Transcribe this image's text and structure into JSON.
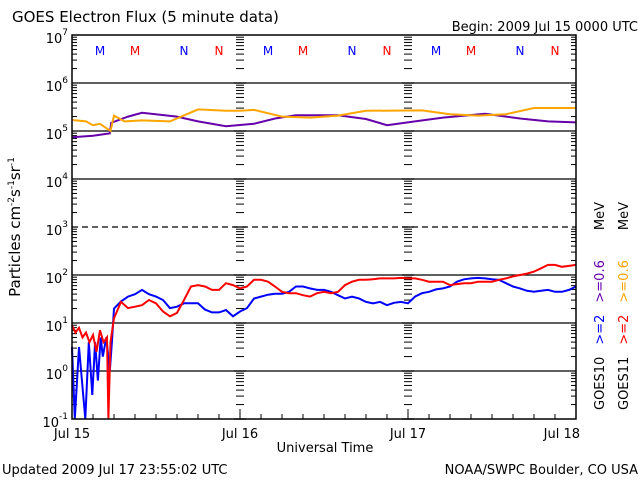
{
  "title": "GOES Electron Flux (5 minute data)",
  "begin": "Begin: 2009 Jul 15 0000 UTC",
  "footer_left": "Updated 2009 Jul 17 23:55:02 UTC",
  "footer_right": "NOAA/SWPC Boulder, CO USA",
  "chart_data": {
    "type": "line",
    "title": "GOES Electron Flux (5 minute data)",
    "xlabel": "Universal Time",
    "ylabel_parts": [
      "Particles cm",
      "-2",
      "s",
      "-1",
      "sr",
      "-1"
    ],
    "x_unit": "hours since 2009 Jul 15 0000 UTC",
    "xlim": [
      0,
      72
    ],
    "x_ticks": [
      {
        "h": 0,
        "label": "Jul 15"
      },
      {
        "h": 24,
        "label": "Jul 16"
      },
      {
        "h": 48,
        "label": "Jul 17"
      },
      {
        "h": 72,
        "label": "Jul 18"
      }
    ],
    "y_scale": "log",
    "ylim_log10": [
      -1,
      7
    ],
    "y_ticks": [
      {
        "base": "10",
        "exp": "7"
      },
      {
        "base": "10",
        "exp": "6"
      },
      {
        "base": "10",
        "exp": "5"
      },
      {
        "base": "10",
        "exp": "4"
      },
      {
        "base": "10",
        "exp": "3"
      },
      {
        "base": "10",
        "exp": "2"
      },
      {
        "base": "10",
        "exp": "1"
      },
      {
        "base": "10",
        "exp": "0"
      },
      {
        "base": "10",
        "exp": "-1"
      }
    ],
    "dashed_gridline_log10": 3,
    "legend": {
      "placement": "right, vertical",
      "columns": [
        {
          "satellite": "GOES10",
          "entries": [
            {
              "label": ">=2",
              "color": "#0000ff"
            },
            {
              "label": ">=0.6",
              "color": "#6600aa"
            }
          ],
          "unit": "MeV"
        },
        {
          "satellite": "GOES11",
          "entries": [
            {
              "label": ">=2",
              "color": "#ff0000"
            },
            {
              "label": ">=0.6",
              "color": "#ffa500"
            }
          ],
          "unit": "MeV"
        }
      ]
    },
    "markers": [
      {
        "h": 4,
        "label": "M",
        "color": "#0000ff"
      },
      {
        "h": 9,
        "label": "M",
        "color": "#ff0000"
      },
      {
        "h": 16,
        "label": "N",
        "color": "#0000ff"
      },
      {
        "h": 21,
        "label": "N",
        "color": "#ff0000"
      },
      {
        "h": 28,
        "label": "M",
        "color": "#0000ff"
      },
      {
        "h": 33,
        "label": "M",
        "color": "#ff0000"
      },
      {
        "h": 40,
        "label": "N",
        "color": "#0000ff"
      },
      {
        "h": 45,
        "label": "N",
        "color": "#ff0000"
      },
      {
        "h": 52,
        "label": "M",
        "color": "#0000ff"
      },
      {
        "h": 57,
        "label": "M",
        "color": "#ff0000"
      },
      {
        "h": 64,
        "label": "N",
        "color": "#0000ff"
      },
      {
        "h": 69,
        "label": "N",
        "color": "#ff0000"
      }
    ],
    "series": [
      {
        "name": "GOES10 >=0.6 MeV",
        "color": "#6600aa",
        "points_h_log10": [
          [
            0,
            4.87
          ],
          [
            3,
            4.9
          ],
          [
            5.4,
            4.95
          ],
          [
            5.6,
            5.17
          ],
          [
            8,
            5.3
          ],
          [
            10,
            5.38
          ],
          [
            15,
            5.3
          ],
          [
            18,
            5.2
          ],
          [
            22,
            5.1
          ],
          [
            26,
            5.15
          ],
          [
            29,
            5.26
          ],
          [
            32,
            5.33
          ],
          [
            38,
            5.33
          ],
          [
            42,
            5.25
          ],
          [
            45,
            5.12
          ],
          [
            49,
            5.2
          ],
          [
            53,
            5.28
          ],
          [
            59,
            5.36
          ],
          [
            64,
            5.26
          ],
          [
            68,
            5.2
          ],
          [
            72,
            5.18
          ]
        ]
      },
      {
        "name": "GOES11 >=0.6 MeV",
        "color": "#ffa500",
        "points_h_log10": [
          [
            0,
            5.23
          ],
          [
            2,
            5.2
          ],
          [
            3,
            5.12
          ],
          [
            4,
            5.15
          ],
          [
            5,
            5.05
          ],
          [
            5.5,
            5.0
          ],
          [
            6,
            5.32
          ],
          [
            7.5,
            5.2
          ],
          [
            10,
            5.22
          ],
          [
            14,
            5.2
          ],
          [
            18,
            5.45
          ],
          [
            22,
            5.42
          ],
          [
            24,
            5.42
          ],
          [
            26,
            5.44
          ],
          [
            30,
            5.3
          ],
          [
            34,
            5.28
          ],
          [
            38,
            5.32
          ],
          [
            42,
            5.42
          ],
          [
            50,
            5.43
          ],
          [
            54,
            5.35
          ],
          [
            58,
            5.32
          ],
          [
            62,
            5.35
          ],
          [
            66,
            5.48
          ],
          [
            72,
            5.48
          ]
        ]
      },
      {
        "name": "GOES10 >=2 MeV",
        "color": "#0000ff",
        "points_h_log10": [
          [
            0,
            0.5
          ],
          [
            0.4,
            -1.0
          ],
          [
            1,
            0.5
          ],
          [
            1.9,
            -1.0
          ],
          [
            2.4,
            0.6
          ],
          [
            2.9,
            -0.5
          ],
          [
            3.3,
            0.6
          ],
          [
            3.7,
            -0.2
          ],
          [
            4.1,
            0.7
          ],
          [
            4.4,
            0.3
          ],
          [
            4.9,
            0.7
          ],
          [
            5.4,
            0.0
          ],
          [
            5.7,
            0.6
          ],
          [
            6,
            1.3
          ],
          [
            7,
            1.45
          ],
          [
            8,
            1.55
          ],
          [
            9,
            1.6
          ],
          [
            10,
            1.69
          ],
          [
            11,
            1.6
          ],
          [
            12,
            1.55
          ],
          [
            13,
            1.48
          ],
          [
            14,
            1.31
          ],
          [
            15,
            1.34
          ],
          [
            16,
            1.41
          ],
          [
            17,
            1.41
          ],
          [
            18,
            1.41
          ],
          [
            19,
            1.28
          ],
          [
            20,
            1.22
          ],
          [
            21,
            1.22
          ],
          [
            22,
            1.27
          ],
          [
            23,
            1.14
          ],
          [
            24,
            1.24
          ],
          [
            25,
            1.31
          ],
          [
            26,
            1.51
          ],
          [
            27,
            1.55
          ],
          [
            28,
            1.59
          ],
          [
            29,
            1.61
          ],
          [
            30,
            1.61
          ],
          [
            31,
            1.65
          ],
          [
            32,
            1.76
          ],
          [
            33,
            1.76
          ],
          [
            34,
            1.72
          ],
          [
            35,
            1.69
          ],
          [
            36,
            1.69
          ],
          [
            37,
            1.65
          ],
          [
            38,
            1.58
          ],
          [
            39,
            1.51
          ],
          [
            40,
            1.55
          ],
          [
            41,
            1.51
          ],
          [
            42,
            1.44
          ],
          [
            43,
            1.41
          ],
          [
            44,
            1.44
          ],
          [
            45,
            1.37
          ],
          [
            46,
            1.42
          ],
          [
            47,
            1.44
          ],
          [
            48,
            1.41
          ],
          [
            49,
            1.55
          ],
          [
            50,
            1.62
          ],
          [
            51,
            1.65
          ],
          [
            52,
            1.7
          ],
          [
            53,
            1.72
          ],
          [
            54,
            1.76
          ],
          [
            55,
            1.86
          ],
          [
            56,
            1.91
          ],
          [
            57,
            1.93
          ],
          [
            58,
            1.94
          ],
          [
            59,
            1.93
          ],
          [
            60,
            1.91
          ],
          [
            61,
            1.9
          ],
          [
            62,
            1.83
          ],
          [
            63,
            1.76
          ],
          [
            64,
            1.72
          ],
          [
            65,
            1.67
          ],
          [
            66,
            1.65
          ],
          [
            67,
            1.67
          ],
          [
            68,
            1.69
          ],
          [
            69,
            1.65
          ],
          [
            70,
            1.65
          ],
          [
            71,
            1.69
          ],
          [
            72,
            1.76
          ]
        ]
      },
      {
        "name": "GOES11 >=2 MeV",
        "color": "#ff0000",
        "points_h_log10": [
          [
            0,
            0.95
          ],
          [
            0.5,
            0.8
          ],
          [
            1,
            0.9
          ],
          [
            1.5,
            0.7
          ],
          [
            2,
            0.8
          ],
          [
            2.5,
            0.6
          ],
          [
            3,
            0.75
          ],
          [
            3.5,
            0.4
          ],
          [
            4,
            0.85
          ],
          [
            4.5,
            0.6
          ],
          [
            5,
            0.7
          ],
          [
            5.2,
            -1.0
          ],
          [
            5.5,
            0.6
          ],
          [
            6,
            1.1
          ],
          [
            7,
            1.44
          ],
          [
            8,
            1.31
          ],
          [
            9,
            1.34
          ],
          [
            10,
            1.37
          ],
          [
            11,
            1.48
          ],
          [
            12,
            1.41
          ],
          [
            13,
            1.24
          ],
          [
            14,
            1.14
          ],
          [
            15,
            1.21
          ],
          [
            16,
            1.48
          ],
          [
            17,
            1.76
          ],
          [
            18,
            1.79
          ],
          [
            19,
            1.76
          ],
          [
            20,
            1.69
          ],
          [
            21,
            1.69
          ],
          [
            22,
            1.83
          ],
          [
            23,
            1.79
          ],
          [
            24,
            1.72
          ],
          [
            25,
            1.76
          ],
          [
            26,
            1.9
          ],
          [
            27,
            1.9
          ],
          [
            28,
            1.86
          ],
          [
            29,
            1.76
          ],
          [
            30,
            1.65
          ],
          [
            31,
            1.62
          ],
          [
            32,
            1.62
          ],
          [
            33,
            1.58
          ],
          [
            34,
            1.55
          ],
          [
            35,
            1.62
          ],
          [
            36,
            1.65
          ],
          [
            37,
            1.62
          ],
          [
            38,
            1.65
          ],
          [
            39,
            1.79
          ],
          [
            40,
            1.86
          ],
          [
            41,
            1.9
          ],
          [
            42,
            1.9
          ],
          [
            43,
            1.91
          ],
          [
            44,
            1.93
          ],
          [
            45,
            1.93
          ],
          [
            46,
            1.93
          ],
          [
            47,
            1.94
          ],
          [
            48,
            1.93
          ],
          [
            49,
            1.93
          ],
          [
            50,
            1.9
          ],
          [
            51,
            1.86
          ],
          [
            52,
            1.86
          ],
          [
            53,
            1.86
          ],
          [
            54,
            1.79
          ],
          [
            55,
            1.81
          ],
          [
            56,
            1.83
          ],
          [
            57,
            1.83
          ],
          [
            58,
            1.86
          ],
          [
            59,
            1.86
          ],
          [
            60,
            1.86
          ],
          [
            61,
            1.9
          ],
          [
            62,
            1.93
          ],
          [
            63,
            1.97
          ],
          [
            64,
            2.0
          ],
          [
            65,
            2.03
          ],
          [
            66,
            2.07
          ],
          [
            67,
            2.14
          ],
          [
            68,
            2.21
          ],
          [
            69,
            2.21
          ],
          [
            70,
            2.17
          ],
          [
            71,
            2.19
          ],
          [
            72,
            2.21
          ]
        ]
      }
    ]
  }
}
